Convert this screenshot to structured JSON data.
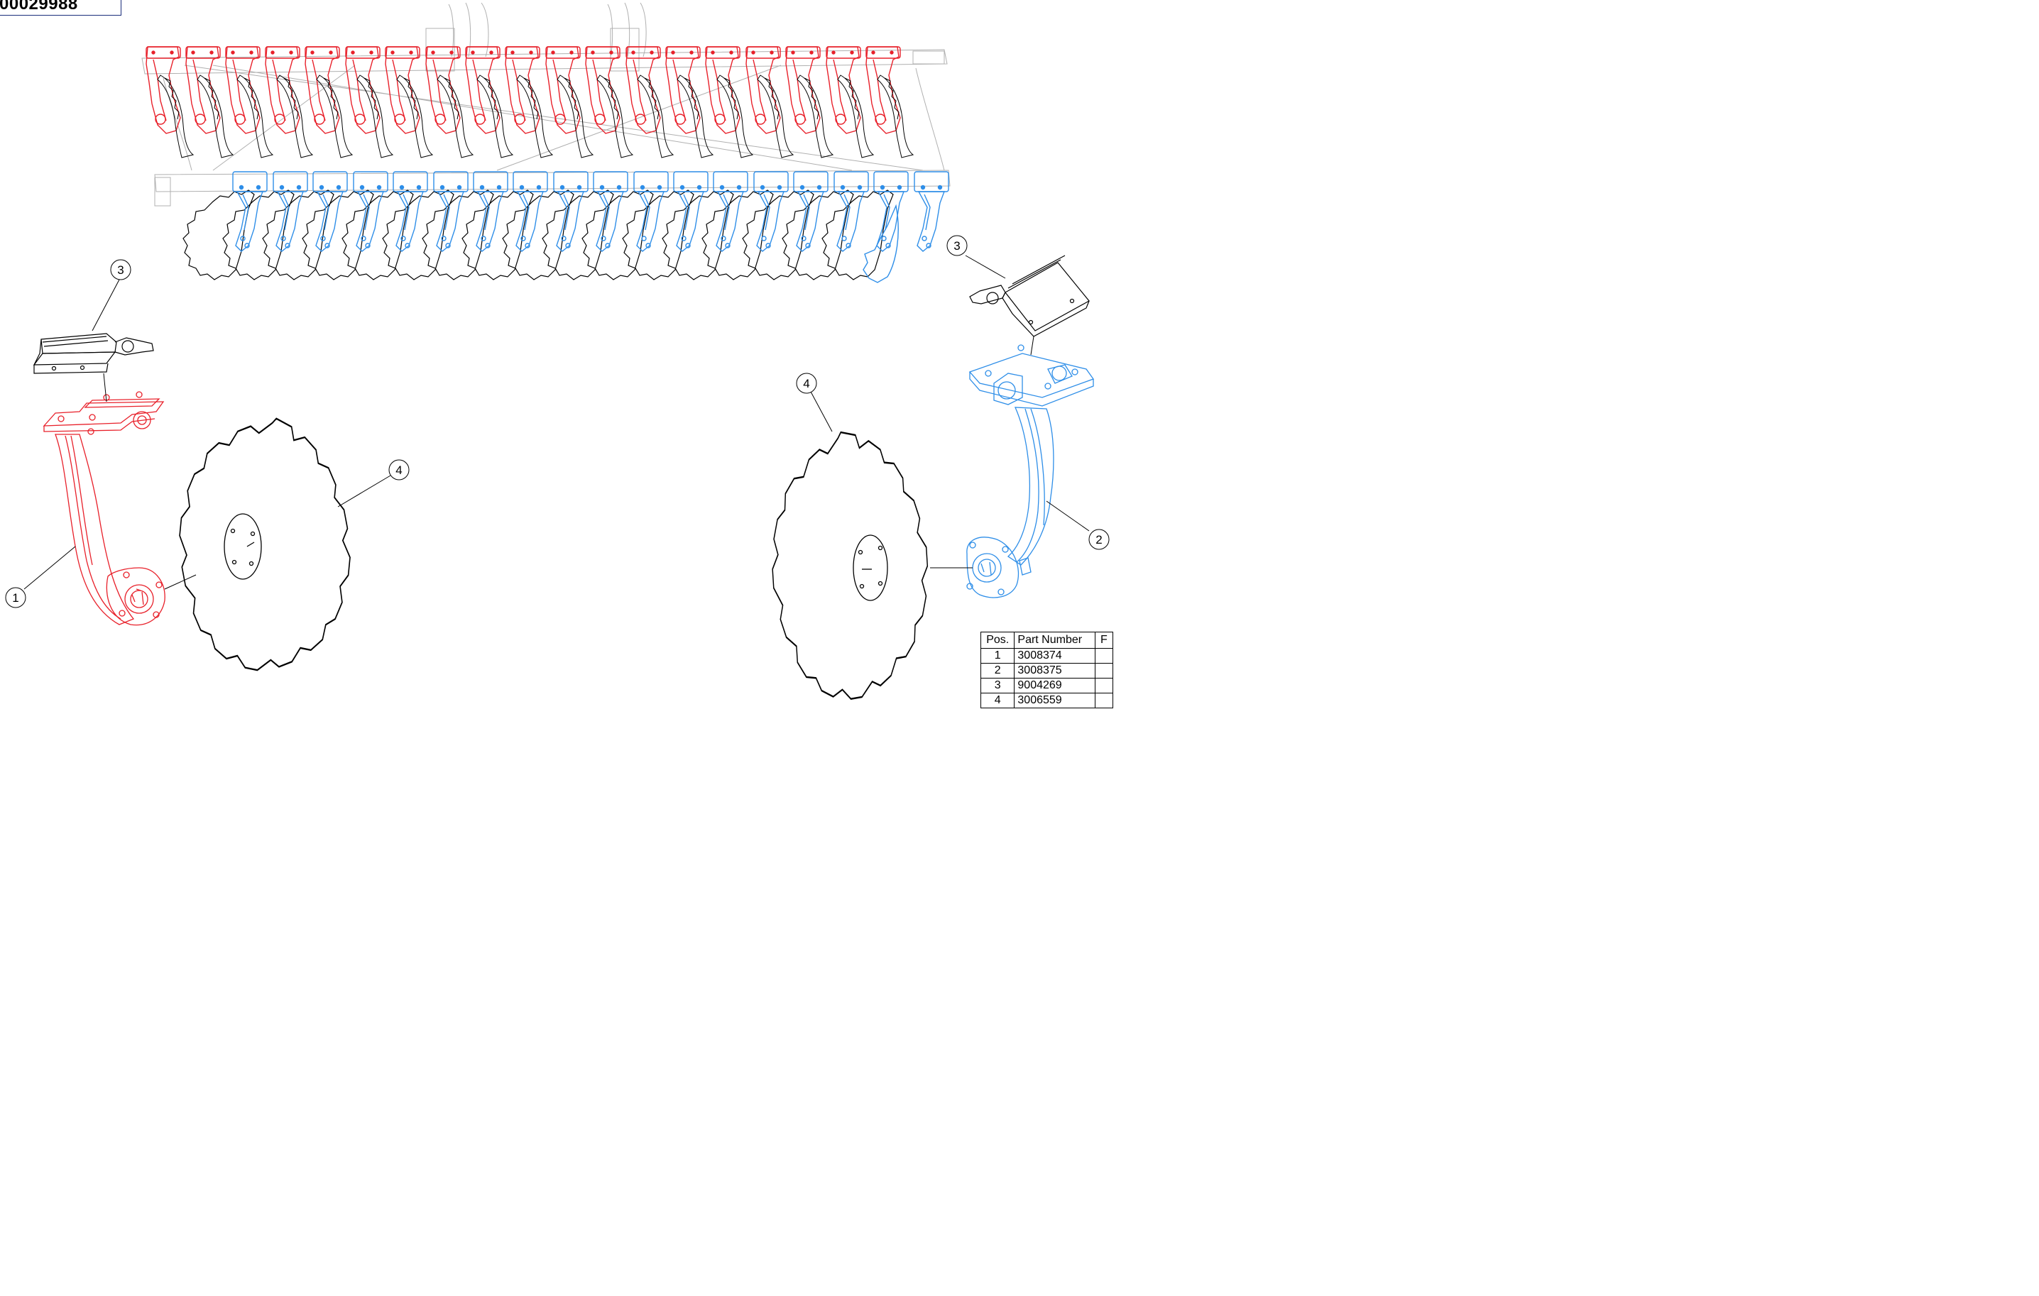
{
  "drawing_number": "00029988",
  "callouts": {
    "part1": "1",
    "part2": "2",
    "part3_left": "3",
    "part3_right": "3",
    "part4_left": "4",
    "part4_right": "4"
  },
  "colors": {
    "front_row_parts": "#e8202a",
    "rear_row_parts": "#2e8ee8",
    "linework": "#000000",
    "frame_ghost": "#b5b5b5"
  },
  "parts_table": {
    "headers": [
      "Pos.",
      "Part Number",
      "F"
    ],
    "rows": [
      {
        "pos": "1",
        "part_number": "3008374"
      },
      {
        "pos": "2",
        "part_number": "3008375"
      },
      {
        "pos": "3",
        "part_number": "9004269"
      },
      {
        "pos": "4",
        "part_number": "3006559"
      }
    ]
  }
}
